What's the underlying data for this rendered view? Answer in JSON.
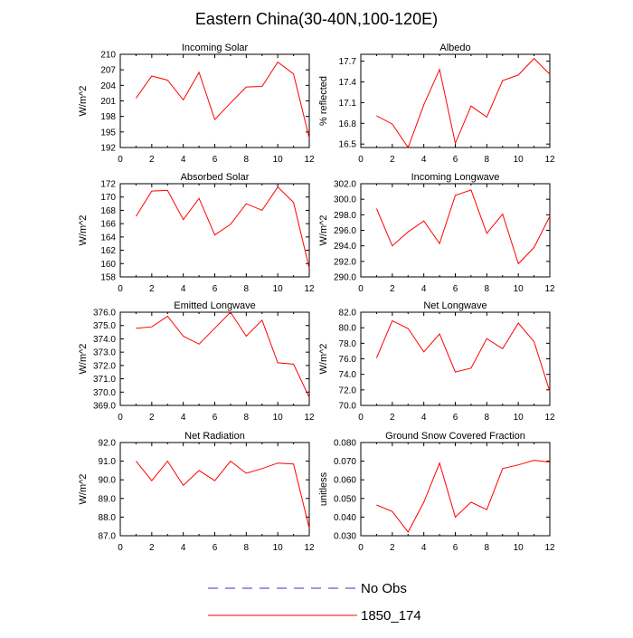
{
  "title": "Eastern China(30-40N,100-120E)",
  "legend": [
    {
      "label": "No Obs",
      "color": "#3333cc",
      "style": "dashed"
    },
    {
      "label": "1850_174",
      "color": "#ff0000",
      "style": "solid"
    }
  ],
  "chart_data": [
    {
      "type": "line",
      "title": "Incoming Solar",
      "ylabel": "W/m^2",
      "xlim": [
        0,
        12
      ],
      "xticks": [
        0,
        2,
        4,
        6,
        8,
        10,
        12
      ],
      "ylim": [
        192,
        210
      ],
      "yticks": [
        192,
        195,
        198,
        201,
        204,
        207,
        210
      ],
      "ytick_labels": [
        "192",
        "195",
        "198",
        "201",
        "204",
        "207",
        "210"
      ],
      "series": [
        {
          "name": "1850_174",
          "x": [
            1,
            2,
            3,
            4,
            5,
            6,
            7,
            8,
            9,
            10,
            11,
            12
          ],
          "values": [
            201.5,
            205.8,
            205.0,
            201.2,
            206.5,
            197.4,
            200.6,
            203.7,
            203.8,
            208.5,
            206.2,
            193.8
          ]
        }
      ]
    },
    {
      "type": "line",
      "title": "Albedo",
      "ylabel": "% reflected",
      "xlim": [
        0,
        12
      ],
      "xticks": [
        0,
        2,
        4,
        6,
        8,
        10,
        12
      ],
      "ylim": [
        16.45,
        17.8
      ],
      "yticks": [
        16.5,
        16.8,
        17.1,
        17.4,
        17.7
      ],
      "ytick_labels": [
        "16.5",
        "16.8",
        "17.1",
        "17.4",
        "17.7"
      ],
      "series": [
        {
          "name": "1850_174",
          "x": [
            1,
            2,
            3,
            4,
            5,
            6,
            7,
            8,
            9,
            10,
            11,
            12
          ],
          "values": [
            16.91,
            16.79,
            16.45,
            17.07,
            17.58,
            16.51,
            17.05,
            16.89,
            17.42,
            17.5,
            17.74,
            17.51
          ]
        }
      ]
    },
    {
      "type": "line",
      "title": "Absorbed Solar",
      "ylabel": "W/m^2",
      "xlim": [
        0,
        12
      ],
      "xticks": [
        0,
        2,
        4,
        6,
        8,
        10,
        12
      ],
      "ylim": [
        158,
        172
      ],
      "yticks": [
        158,
        160,
        162,
        164,
        166,
        168,
        170,
        172
      ],
      "ytick_labels": [
        "158",
        "160",
        "162",
        "164",
        "166",
        "168",
        "170",
        "172"
      ],
      "series": [
        {
          "name": "1850_174",
          "x": [
            1,
            2,
            3,
            4,
            5,
            6,
            7,
            8,
            9,
            10,
            11,
            12
          ],
          "values": [
            167.1,
            170.9,
            171.0,
            166.6,
            169.8,
            164.3,
            165.9,
            169.0,
            168.0,
            171.5,
            169.2,
            159.3
          ]
        }
      ]
    },
    {
      "type": "line",
      "title": "Incoming Longwave",
      "ylabel": "W/m^2",
      "xlim": [
        0,
        12
      ],
      "xticks": [
        0,
        2,
        4,
        6,
        8,
        10,
        12
      ],
      "ylim": [
        290,
        302
      ],
      "yticks": [
        290,
        292,
        294,
        296,
        298,
        300,
        302
      ],
      "ytick_labels": [
        "290.0",
        "292.0",
        "294.0",
        "296.0",
        "298.0",
        "300.0",
        "302.0"
      ],
      "series": [
        {
          "name": "1850_174",
          "x": [
            1,
            2,
            3,
            4,
            5,
            6,
            7,
            8,
            9,
            10,
            11,
            12
          ],
          "values": [
            298.8,
            294.0,
            295.8,
            297.2,
            294.3,
            300.5,
            301.2,
            295.6,
            298.1,
            291.7,
            293.8,
            297.8
          ]
        }
      ]
    },
    {
      "type": "line",
      "title": "Emitted Longwave",
      "ylabel": "W/m^2",
      "xlim": [
        0,
        12
      ],
      "xticks": [
        0,
        2,
        4,
        6,
        8,
        10,
        12
      ],
      "ylim": [
        369,
        376
      ],
      "yticks": [
        369,
        370,
        371,
        372,
        373,
        374,
        375,
        376
      ],
      "ytick_labels": [
        "369.0",
        "370.0",
        "371.0",
        "372.0",
        "373.0",
        "374.0",
        "375.0",
        "376.0"
      ],
      "series": [
        {
          "name": "1850_174",
          "x": [
            1,
            2,
            3,
            4,
            5,
            6,
            7,
            8,
            9,
            10,
            11,
            12
          ],
          "values": [
            374.8,
            374.9,
            375.7,
            374.2,
            373.6,
            374.8,
            376.0,
            374.2,
            375.4,
            372.2,
            372.1,
            369.6
          ]
        }
      ]
    },
    {
      "type": "line",
      "title": "Net Longwave",
      "ylabel": "W/m^2",
      "xlim": [
        0,
        12
      ],
      "xticks": [
        0,
        2,
        4,
        6,
        8,
        10,
        12
      ],
      "ylim": [
        70,
        82
      ],
      "yticks": [
        70,
        72,
        74,
        76,
        78,
        80,
        82
      ],
      "ytick_labels": [
        "70.0",
        "72.0",
        "74.0",
        "76.0",
        "78.0",
        "80.0",
        "82.0"
      ],
      "series": [
        {
          "name": "1850_174",
          "x": [
            1,
            2,
            3,
            4,
            5,
            6,
            7,
            8,
            9,
            10,
            11,
            12
          ],
          "values": [
            76.1,
            80.9,
            79.9,
            76.9,
            79.2,
            74.3,
            74.8,
            78.6,
            77.3,
            80.6,
            78.2,
            71.8
          ]
        }
      ]
    },
    {
      "type": "line",
      "title": "Net Radiation",
      "ylabel": "W/m^2",
      "xlim": [
        0,
        12
      ],
      "xticks": [
        0,
        2,
        4,
        6,
        8,
        10,
        12
      ],
      "ylim": [
        87,
        92
      ],
      "yticks": [
        87,
        88,
        89,
        90,
        91,
        92
      ],
      "ytick_labels": [
        "87.0",
        "88.0",
        "89.0",
        "90.0",
        "91.0",
        "92.0"
      ],
      "series": [
        {
          "name": "1850_174",
          "x": [
            1,
            2,
            3,
            4,
            5,
            6,
            7,
            8,
            9,
            10,
            11,
            12
          ],
          "values": [
            91.0,
            89.95,
            91.0,
            89.7,
            90.5,
            89.95,
            91.0,
            90.35,
            90.6,
            90.9,
            90.85,
            87.4
          ]
        }
      ]
    },
    {
      "type": "line",
      "title": "Ground Snow Covered Fraction",
      "ylabel": "unitless",
      "xlim": [
        0,
        12
      ],
      "xticks": [
        0,
        2,
        4,
        6,
        8,
        10,
        12
      ],
      "ylim": [
        0.03,
        0.08
      ],
      "yticks": [
        0.03,
        0.04,
        0.05,
        0.06,
        0.07,
        0.08
      ],
      "ytick_labels": [
        "0.030",
        "0.040",
        "0.050",
        "0.060",
        "0.070",
        "0.080"
      ],
      "series": [
        {
          "name": "1850_174",
          "x": [
            1,
            2,
            3,
            4,
            5,
            6,
            7,
            8,
            9,
            10,
            11,
            12
          ],
          "values": [
            0.0465,
            0.043,
            0.032,
            0.048,
            0.069,
            0.04,
            0.048,
            0.044,
            0.066,
            0.068,
            0.0705,
            0.0695
          ]
        }
      ]
    }
  ]
}
